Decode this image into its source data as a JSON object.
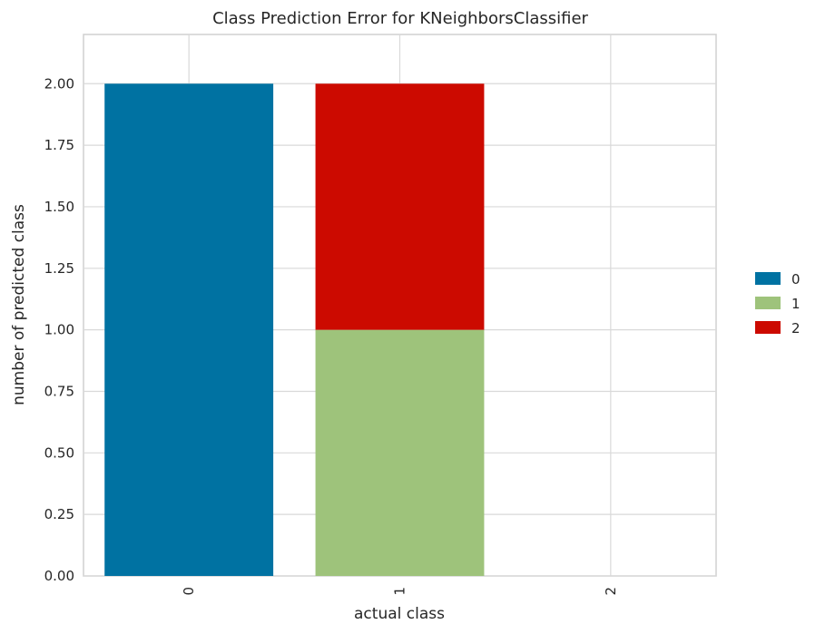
{
  "chart_data": {
    "type": "bar",
    "stacked": true,
    "title": "Class Prediction Error for KNeighborsClassifier",
    "xlabel": "actual class",
    "ylabel": "number of predicted class",
    "categories": [
      "0",
      "1",
      "2"
    ],
    "ylim": [
      0,
      2.2
    ],
    "yticks": [
      "0.00",
      "0.25",
      "0.50",
      "0.75",
      "1.00",
      "1.25",
      "1.50",
      "1.75",
      "2.00"
    ],
    "ytick_values": [
      0,
      0.25,
      0.5,
      0.75,
      1.0,
      1.25,
      1.5,
      1.75,
      2.0
    ],
    "series": [
      {
        "name": "0",
        "color": "#0072a2",
        "values": [
          2,
          0,
          0
        ]
      },
      {
        "name": "1",
        "color": "#9ec37b",
        "values": [
          0,
          1,
          0
        ]
      },
      {
        "name": "2",
        "color": "#cc0a00",
        "values": [
          0,
          1,
          0
        ]
      }
    ],
    "grid": true,
    "legend": "right"
  }
}
